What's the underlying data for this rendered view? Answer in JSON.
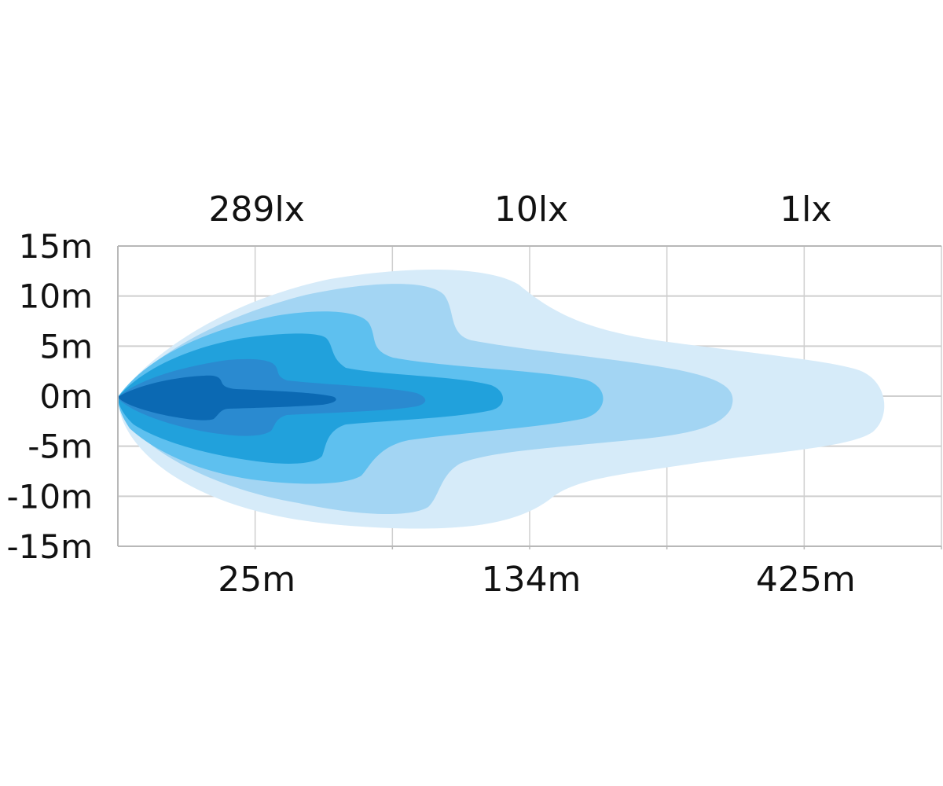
{
  "chart_data": {
    "type": "area",
    "title": "",
    "xlabel": "",
    "ylabel": "",
    "ylim": [
      -15,
      15
    ],
    "grid": true,
    "y_ticks": [
      "15m",
      "10m",
      "5m",
      "0m",
      "-5m",
      "-10m",
      "-15m"
    ],
    "y_tick_values": [
      15,
      10,
      5,
      0,
      -5,
      -10,
      -15
    ],
    "top_labels": [
      "289lx",
      "10lx",
      "1lx"
    ],
    "bottom_labels": [
      "25m",
      "134m",
      "425m"
    ],
    "label_columns": [
      1,
      3,
      5
    ],
    "columns": 6,
    "beam_layers": [
      {
        "color": "#d6ebf9"
      },
      {
        "color": "#a3d5f3"
      },
      {
        "color": "#5ec0ef"
      },
      {
        "color": "#21a1dc"
      },
      {
        "color": "#2a8ad0"
      },
      {
        "color": "#0b69b3"
      }
    ],
    "colors": {
      "grid": "#cfcfcf",
      "axis": "#b8b8b8",
      "text": "#111111"
    }
  }
}
